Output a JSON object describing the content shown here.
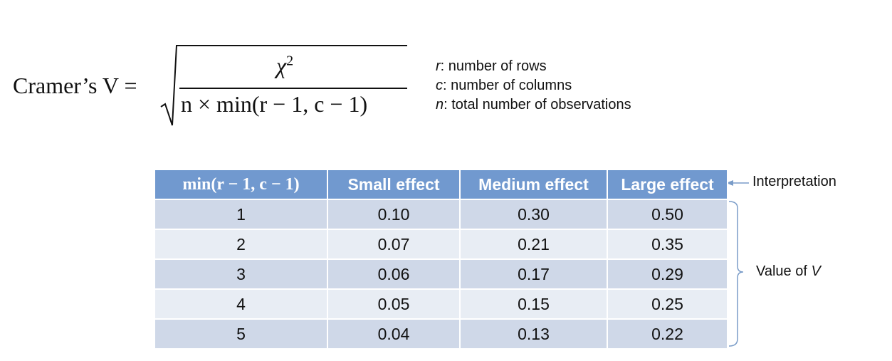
{
  "formula": {
    "lhs": "Cramer’s V =",
    "numerator": "χ",
    "numerator_exponent": "2",
    "denominator": "n × min(r − 1, c − 1)"
  },
  "definitions": [
    {
      "symbol": "r",
      "text": ": number of rows"
    },
    {
      "symbol": "c",
      "text": ": number of columns"
    },
    {
      "symbol": "n",
      "text": ": total number of observations"
    }
  ],
  "table": {
    "header": [
      "min(r − 1, c − 1)",
      "Small effect",
      "Medium effect",
      "Large effect"
    ],
    "rows": [
      [
        "1",
        "0.10",
        "0.30",
        "0.50"
      ],
      [
        "2",
        "0.07",
        "0.21",
        "0.35"
      ],
      [
        "3",
        "0.06",
        "0.17",
        "0.29"
      ],
      [
        "4",
        "0.05",
        "0.15",
        "0.25"
      ],
      [
        "5",
        "0.04",
        "0.13",
        "0.22"
      ]
    ]
  },
  "annotations": {
    "header_label": "Interpretation",
    "value_label": {
      "text": "Value of",
      "symbol": "V"
    }
  }
}
